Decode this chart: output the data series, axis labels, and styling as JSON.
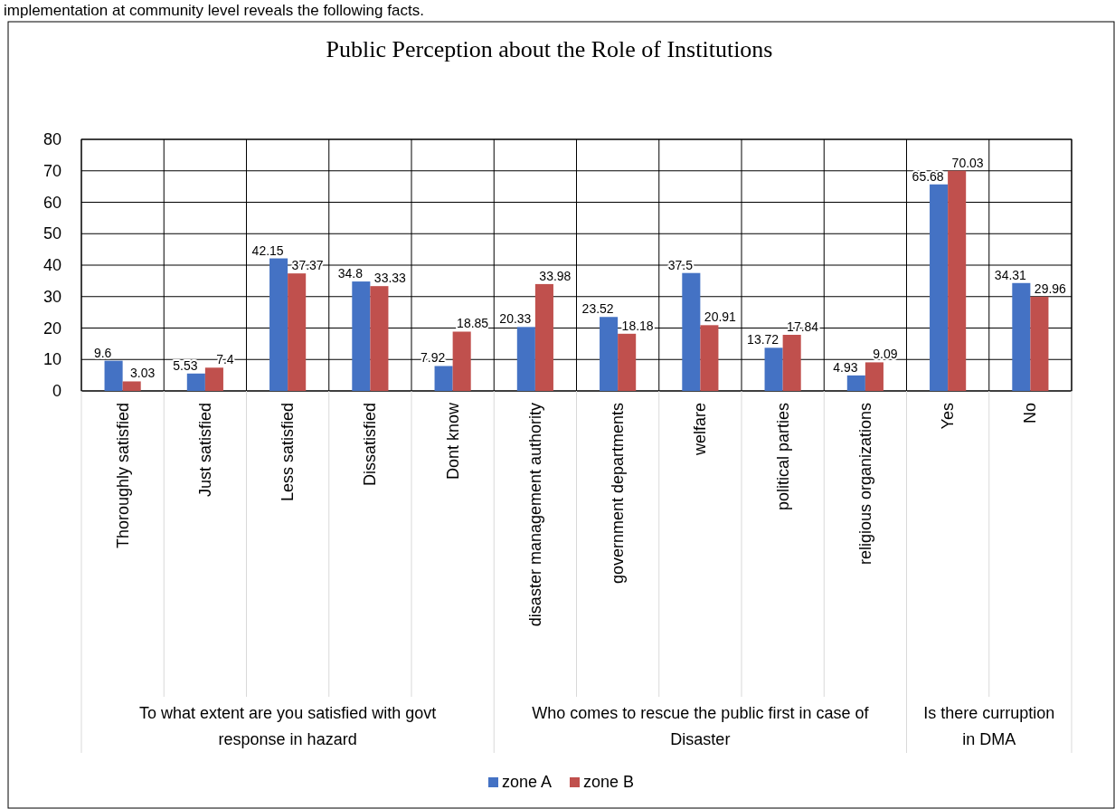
{
  "chart_data": {
    "type": "bar",
    "title": "Public Perception about the Role of Institutions",
    "categories": [
      "Thoroughly satisfied",
      "Just satisfied",
      "Less satisfied",
      "Dissatisfied",
      "Dont know",
      "disaster management authority",
      "government departments",
      "welfare",
      "political parties",
      "religious organizations",
      "Yes",
      "No"
    ],
    "series": [
      {
        "name": "zone A",
        "color": "#4472c4",
        "values": [
          9.6,
          5.53,
          42.15,
          34.8,
          7.92,
          20.33,
          23.52,
          37.5,
          13.72,
          4.93,
          65.68,
          34.31
        ]
      },
      {
        "name": "zone B",
        "color": "#c0504d",
        "values": [
          3.03,
          7.4,
          37.37,
          33.33,
          18.85,
          33.98,
          18.18,
          20.91,
          17.84,
          9.09,
          70.03,
          29.96
        ]
      }
    ],
    "ylim": [
      0,
      80
    ],
    "yticks": [
      0,
      10,
      20,
      30,
      40,
      50,
      60,
      70,
      80
    ],
    "grid": true,
    "legend": "bottom",
    "data_labels": true,
    "annotations": [
      "implementation at community level reveals the following facts.",
      "To what extent are you satisfied with govt response in hazard",
      "Who comes to rescue the public first in case of Disaster",
      "Is there curruption in DMA"
    ]
  }
}
